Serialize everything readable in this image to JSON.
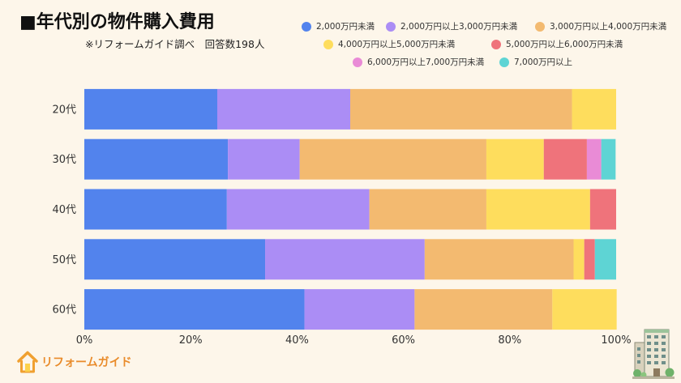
{
  "brand": {
    "name": "リフォームガイド",
    "icon": "house-icon",
    "color": "#E98B2A"
  },
  "illustration_icon": "apartment-building-icon",
  "chart_data": {
    "type": "bar",
    "orientation": "horizontal",
    "stacked": true,
    "title": "■年代別の物件購入費用",
    "subtitle": "※リフォームガイド調べ　回答数198人",
    "categories": [
      "20代",
      "30代",
      "40代",
      "50代",
      "60代"
    ],
    "series": [
      {
        "name": "2,000万円未満",
        "color": "#5283ED",
        "values": [
          25.0,
          27.0,
          26.8,
          34.0,
          41.4
        ]
      },
      {
        "name": "2,000万円以上3,000万円未満",
        "color": "#AB8DF5",
        "values": [
          25.0,
          13.5,
          26.8,
          30.0,
          20.7
        ]
      },
      {
        "name": "3,000万円以上4,000万円未満",
        "color": "#F3BA70",
        "values": [
          41.7,
          35.1,
          22.0,
          28.0,
          25.9
        ]
      },
      {
        "name": "4,000万円以上5,000万円未満",
        "color": "#FEDD5D",
        "values": [
          8.3,
          10.8,
          19.5,
          2.0,
          12.1
        ]
      },
      {
        "name": "5,000万円以上6,000万円未満",
        "color": "#EF737B",
        "values": [
          0,
          8.1,
          4.9,
          2.0,
          0
        ]
      },
      {
        "name": "6,000万円以上7,000万円未満",
        "color": "#E98BD6",
        "values": [
          0,
          2.7,
          0,
          0,
          0
        ]
      },
      {
        "name": "7,000万円以上",
        "color": "#5ED4D4",
        "values": [
          0,
          2.7,
          0,
          4.0,
          0
        ]
      }
    ],
    "xlim": [
      0,
      100
    ],
    "x_ticks": [
      0,
      20,
      40,
      60,
      80,
      100
    ],
    "x_tick_labels": [
      "0%",
      "20%",
      "40%",
      "60%",
      "80%",
      "100%"
    ],
    "grid": false,
    "legend_position": "top-right"
  }
}
